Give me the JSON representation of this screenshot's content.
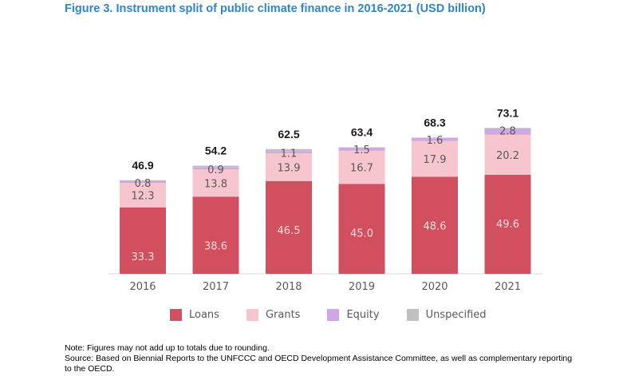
{
  "title": "Figure 3. Instrument split of public climate finance in 2016-2021 (USD billion)",
  "chart_data": {
    "type": "bar",
    "stacked": true,
    "categories": [
      "2016",
      "2017",
      "2018",
      "2019",
      "2020",
      "2021"
    ],
    "series": [
      {
        "name": "Loans",
        "color": "#d14f5e",
        "values": [
          33.3,
          38.6,
          46.5,
          45.0,
          48.6,
          49.6
        ],
        "labels": [
          "33.3",
          "38.6",
          "46.5",
          "45.0",
          "48.6",
          "49.6"
        ]
      },
      {
        "name": "Grants",
        "color": "#f7c5cd",
        "values": [
          12.3,
          13.8,
          13.9,
          16.7,
          17.9,
          20.2
        ],
        "labels": [
          "12.3",
          "13.8",
          "13.9",
          "16.7",
          "17.9",
          "20.2"
        ]
      },
      {
        "name": "Equity",
        "color": "#cda7e6",
        "values": [
          0.8,
          0.9,
          1.1,
          1.5,
          1.6,
          2.8
        ],
        "labels": [
          "0.8",
          "0.9",
          "1.1",
          "1.5",
          "1.6",
          "2.8"
        ]
      },
      {
        "name": "Unspecified",
        "color": "#c0c0c0",
        "values": [
          0.5,
          0.9,
          1.0,
          0.2,
          0.2,
          0.5
        ],
        "labels": [
          "",
          "",
          "",
          "",
          "",
          ""
        ]
      }
    ],
    "totals": [
      "46.9",
      "54.2",
      "62.5",
      "63.4",
      "68.3",
      "73.1"
    ],
    "ylim": [
      0,
      80
    ],
    "grid": false,
    "legend_position": "bottom"
  },
  "note": "Note: Figures may not add up to totals due to rounding.",
  "source": "Source: Based on Biennial Reports to the UNFCCC and OECD Development Assistance Committee, as well as complementary reporting to the OECD."
}
